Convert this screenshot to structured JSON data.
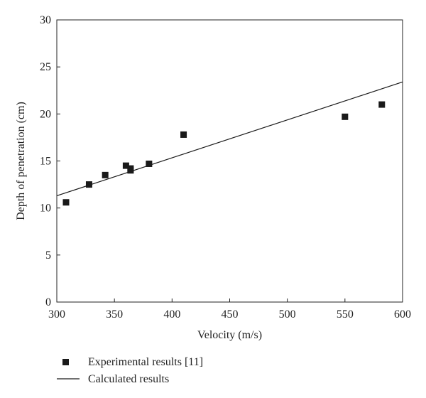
{
  "chart_data": {
    "type": "scatter",
    "xlabel": "Velocity (m/s)",
    "ylabel": "Depth of penetration (cm)",
    "xlim": [
      300,
      600
    ],
    "ylim": [
      0,
      30
    ],
    "xticks": [
      300,
      350,
      400,
      450,
      500,
      550,
      600
    ],
    "yticks": [
      0,
      5,
      10,
      15,
      20,
      25,
      30
    ],
    "grid": false,
    "legend_position": "bottom-left",
    "series": [
      {
        "name": "Experimental results [11]",
        "type": "scatter",
        "marker": "square",
        "color": "#1a1a1a",
        "points": [
          {
            "x": 308,
            "y": 10.6
          },
          {
            "x": 328,
            "y": 12.5
          },
          {
            "x": 342,
            "y": 13.5
          },
          {
            "x": 360,
            "y": 14.5
          },
          {
            "x": 364,
            "y": 14.2
          },
          {
            "x": 364,
            "y": 14.0
          },
          {
            "x": 380,
            "y": 14.7
          },
          {
            "x": 410,
            "y": 17.8
          },
          {
            "x": 550,
            "y": 19.7
          },
          {
            "x": 582,
            "y": 21.0
          }
        ]
      },
      {
        "name": "Calculated results",
        "type": "line",
        "color": "#1a1a1a",
        "points": [
          {
            "x": 300,
            "y": 11.3
          },
          {
            "x": 600,
            "y": 23.4
          }
        ]
      }
    ]
  }
}
